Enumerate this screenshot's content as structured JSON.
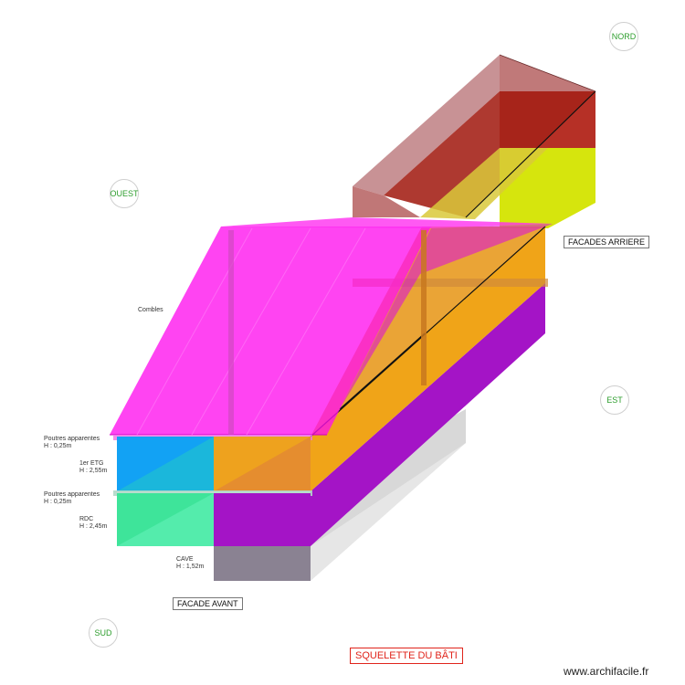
{
  "compass": {
    "north": "NORD",
    "west": "OUEST",
    "east": "EST",
    "south": "SUD"
  },
  "labels": {
    "attic": "Combles",
    "beams_upper_name": "Poutres apparentes",
    "beams_upper_height": "H : 0,25m",
    "floor1_name": "1er ETG",
    "floor1_height": "H : 2,55m",
    "beams_lower_name": "Poutres apparentes",
    "beams_lower_height": "H : 0,25m",
    "ground_name": "RDC",
    "ground_height": "H : 2,45m",
    "cellar_name": "CAVE",
    "cellar_height": "H : 1,52m"
  },
  "facades": {
    "rear": "FACADES ARRIERE",
    "front": "FACADE AVANT"
  },
  "title": "SQUELETTE DU BÂTI",
  "watermark": "www.archifacile.fr",
  "colors": {
    "roof": "#ff1ff0",
    "floor_orange": "#f2a516",
    "floor_purple": "#a212c4",
    "rear_red": "#aa1a10",
    "rear_yellow": "#d8e600",
    "cellar": "#8a8292",
    "blue": "#10a0f0",
    "green": "#3ee69a",
    "compass_text": "#2e9e2e",
    "title_red": "#e0241b"
  }
}
